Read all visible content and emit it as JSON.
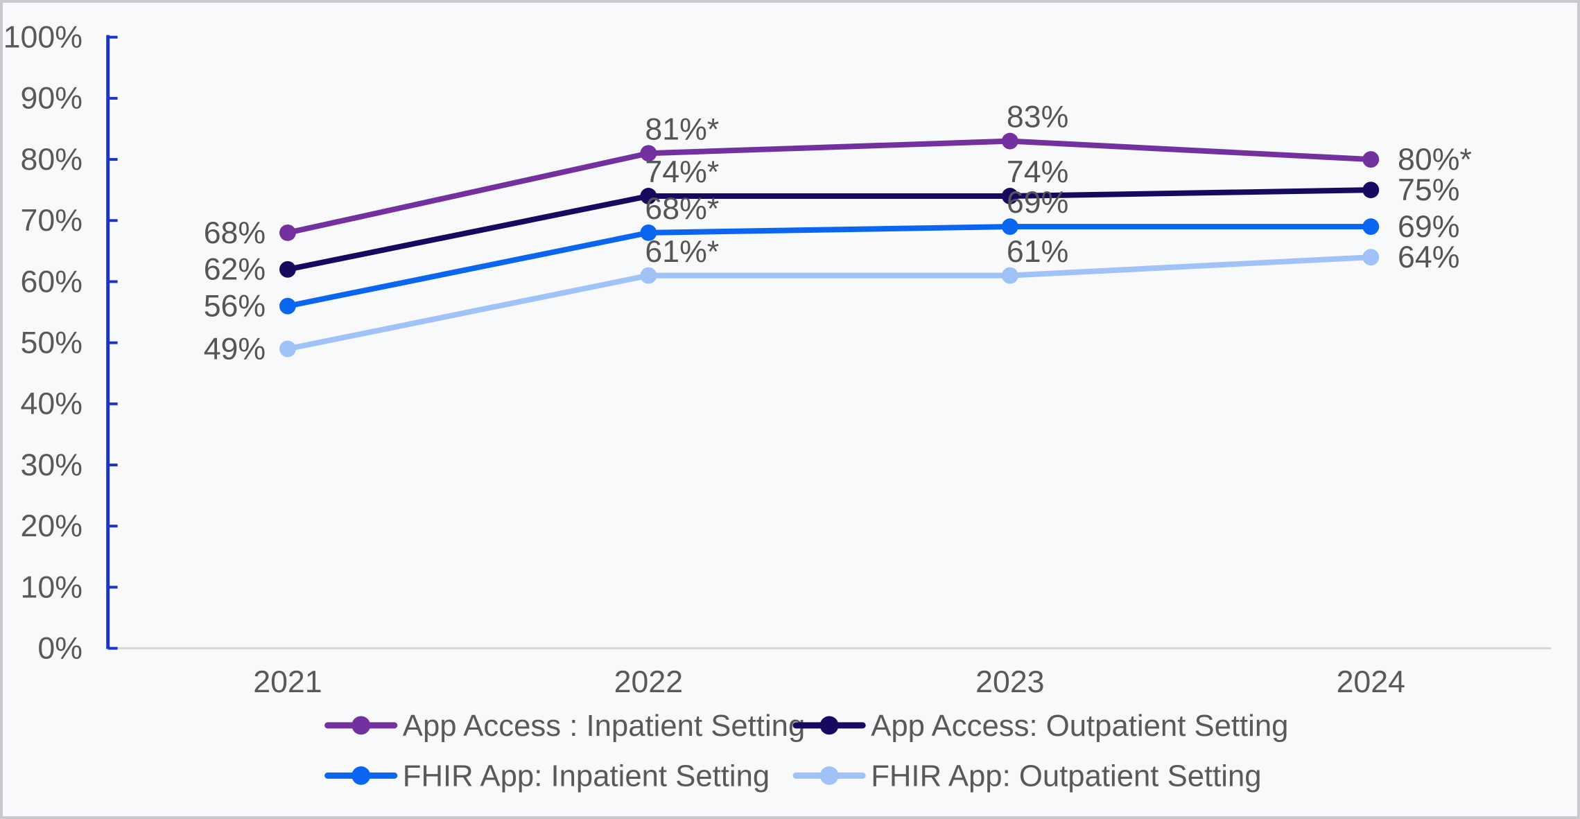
{
  "chart_data": {
    "type": "line",
    "title": "",
    "categories": [
      "2021",
      "2022",
      "2023",
      "2024"
    ],
    "series": [
      {
        "name": "App Access : Inpatient Setting",
        "color": "#72319E",
        "values": [
          68,
          81,
          83,
          80
        ],
        "point_labels": [
          "68%",
          "81%*",
          "83%",
          "80%*"
        ]
      },
      {
        "name": "App Access: Outpatient Setting",
        "color": "#150A60",
        "values": [
          62,
          74,
          74,
          75
        ],
        "point_labels": [
          "62%",
          "74%*",
          "74%",
          "75%"
        ]
      },
      {
        "name": "FHIR App: Inpatient Setting",
        "color": "#0A66F0",
        "values": [
          56,
          68,
          69,
          69
        ],
        "point_labels": [
          "56%",
          "68%*",
          "69%",
          "69%"
        ]
      },
      {
        "name": "FHIR App: Outpatient Setting",
        "color": "#9FC2F7",
        "values": [
          49,
          61,
          61,
          64
        ],
        "point_labels": [
          "49%",
          "61%*",
          "61%",
          "64%"
        ]
      }
    ],
    "y_axis": {
      "min": 0,
      "max": 100,
      "step": 10,
      "tick_labels": [
        "0%",
        "10%",
        "20%",
        "30%",
        "40%",
        "50%",
        "60%",
        "70%",
        "80%",
        "90%",
        "100%"
      ]
    },
    "x_axis": {
      "label": ""
    },
    "grid": false,
    "legend_position": "bottom",
    "colors": {
      "y_axis_line": "#1C33CB",
      "x_axis_line": "#D6D6D8",
      "axis_tick_text": "#595959",
      "data_label_text": "#555555",
      "legend_text": "#595959",
      "plot_background": "#F8F9FB"
    }
  }
}
